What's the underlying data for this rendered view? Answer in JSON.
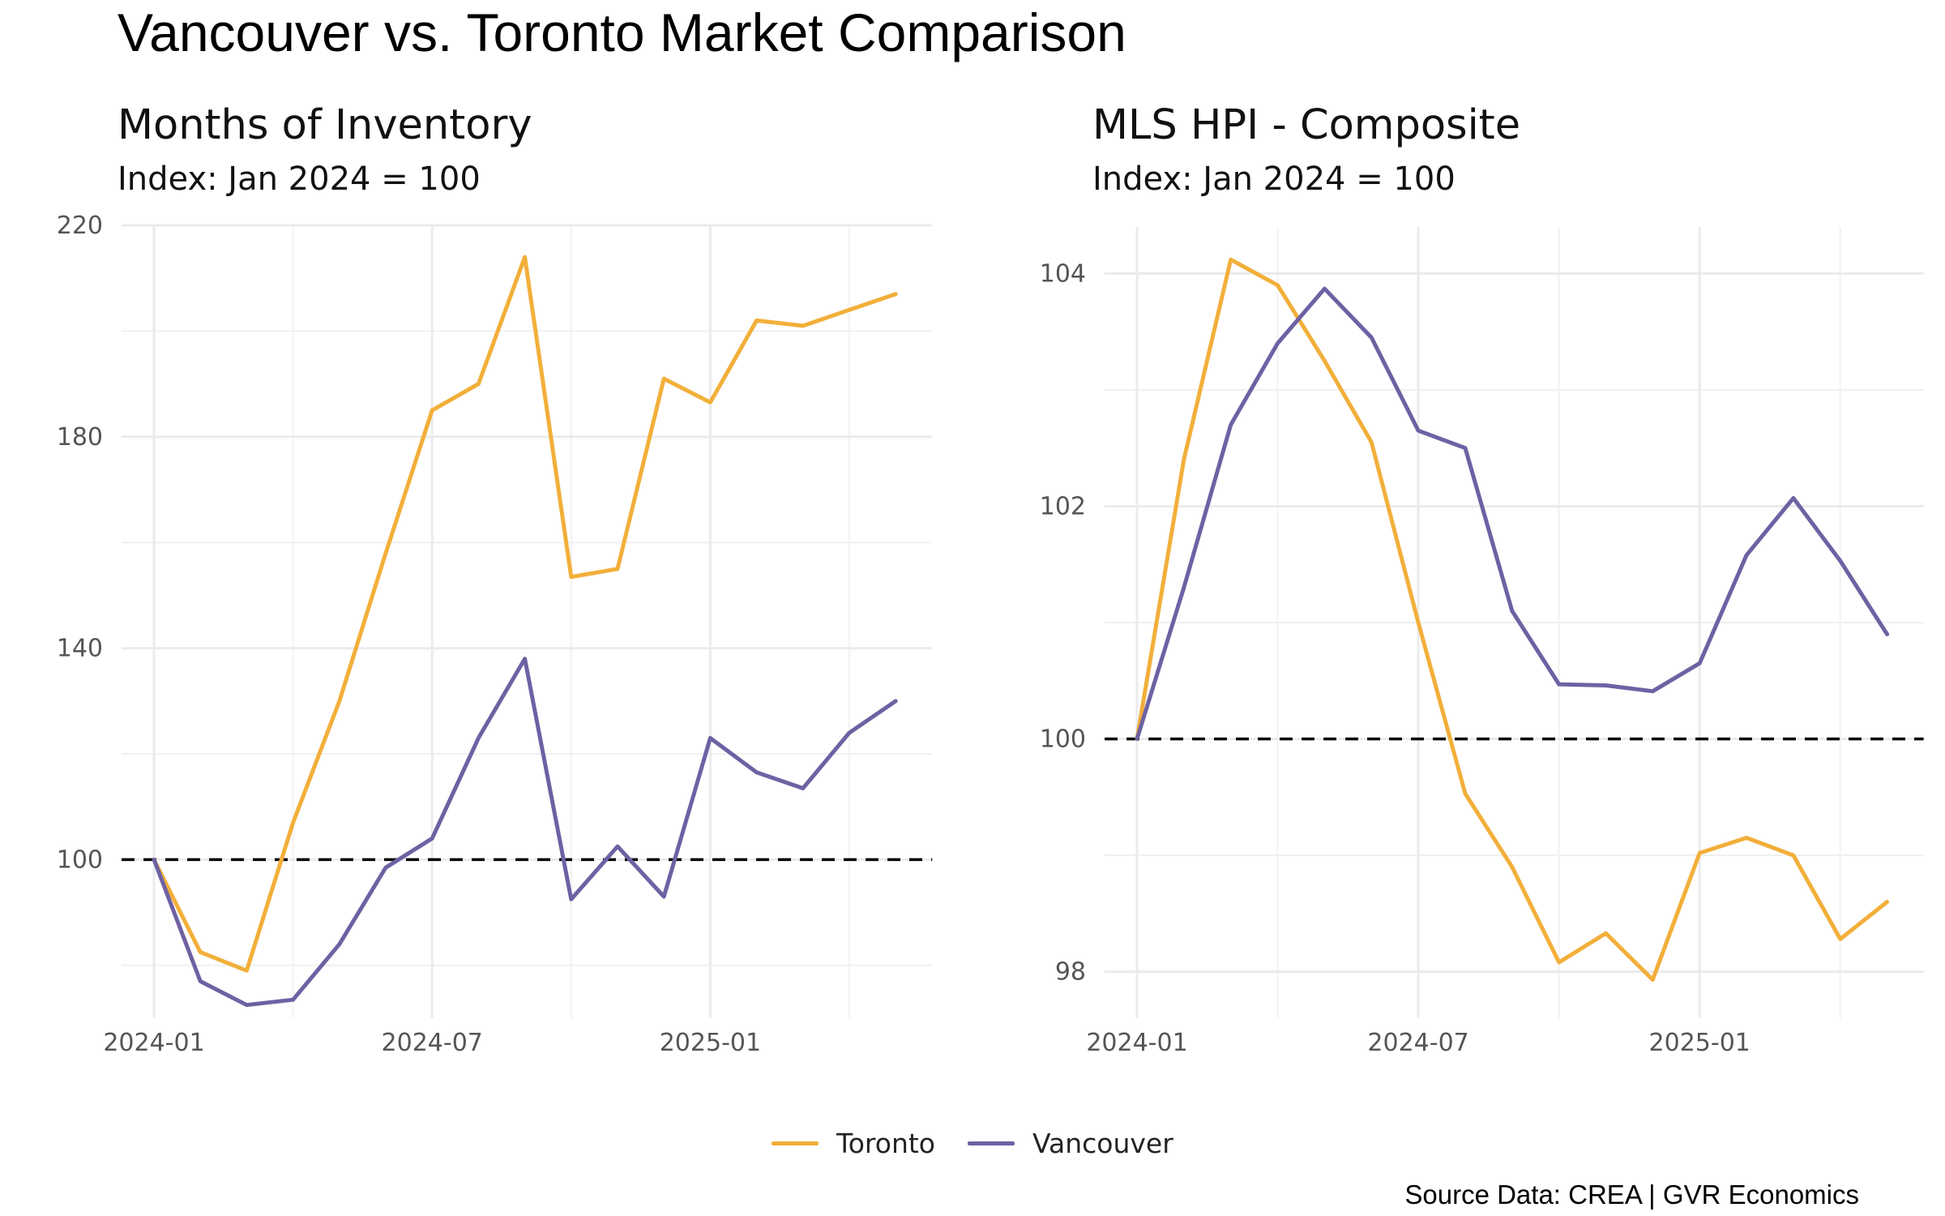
{
  "title": "Vancouver vs. Toronto Market Comparison",
  "source": "Source Data: CREA | GVR Economics",
  "colors": {
    "Toronto": "#F2AF3A",
    "Vancouver": "#6E61A3",
    "reference": "#000000",
    "grid": "#EBEBEB"
  },
  "legend": [
    {
      "name": "Toronto",
      "color": "#F2AF3A"
    },
    {
      "name": "Vancouver",
      "color": "#6E61A3"
    }
  ],
  "chart_data": [
    {
      "type": "line",
      "title": "Months of Inventory",
      "subtitle": "Index: Jan 2024 = 100",
      "x": [
        "2024-01",
        "2024-02",
        "2024-03",
        "2024-04",
        "2024-05",
        "2024-06",
        "2024-07",
        "2024-08",
        "2024-09",
        "2024-10",
        "2024-11",
        "2024-12",
        "2025-01",
        "2025-02",
        "2025-03",
        "2025-04",
        "2025-05"
      ],
      "xticks": [
        "2024-01",
        "2024-07",
        "2025-01"
      ],
      "ylim": [
        70,
        220
      ],
      "yticks": [
        100,
        140,
        180,
        220
      ],
      "reference_line": 100,
      "grid": true,
      "series": [
        {
          "name": "Toronto",
          "values": [
            100,
            82.5,
            79,
            107,
            130,
            158,
            185,
            190,
            214,
            153.5,
            155,
            191,
            186.5,
            202,
            201,
            204,
            207
          ]
        },
        {
          "name": "Vancouver",
          "values": [
            100,
            77,
            72.5,
            73.5,
            84,
            98.5,
            104,
            123,
            138,
            92.5,
            102.5,
            93,
            123,
            116.5,
            113.5,
            124,
            130
          ]
        }
      ]
    },
    {
      "type": "line",
      "title": "MLS HPI - Composite",
      "subtitle": "Index: Jan 2024 = 100",
      "x": [
        "2024-01",
        "2024-02",
        "2024-03",
        "2024-04",
        "2024-05",
        "2024-06",
        "2024-07",
        "2024-08",
        "2024-09",
        "2024-10",
        "2024-11",
        "2024-12",
        "2025-01",
        "2025-02",
        "2025-03",
        "2025-04",
        "2025-05"
      ],
      "xticks": [
        "2024-01",
        "2024-07",
        "2025-01"
      ],
      "ylim": [
        97.6,
        104.4
      ],
      "yticks": [
        98,
        100,
        102,
        104
      ],
      "reference_line": 100,
      "grid": true,
      "series": [
        {
          "name": "Toronto",
          "values": [
            100,
            102.4,
            104.12,
            103.9,
            103.25,
            102.55,
            101,
            99.53,
            98.9,
            98.08,
            98.33,
            97.93,
            99.02,
            99.15,
            99.0,
            98.28,
            98.6
          ]
        },
        {
          "name": "Vancouver",
          "values": [
            100,
            101.3,
            102.7,
            103.4,
            103.87,
            103.45,
            102.65,
            102.5,
            101.1,
            100.47,
            100.46,
            100.41,
            100.65,
            101.58,
            102.07,
            101.53,
            100.9
          ]
        }
      ]
    }
  ]
}
